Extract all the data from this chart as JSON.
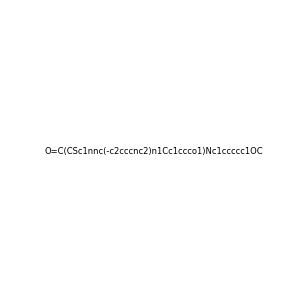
{
  "smiles": "O=C(CSc1nnc(-c2cccnc2)n1Cc1ccco1)Nc1ccccc1OC",
  "image_size": 300,
  "background_color": "#f0f0f0",
  "title": ""
}
